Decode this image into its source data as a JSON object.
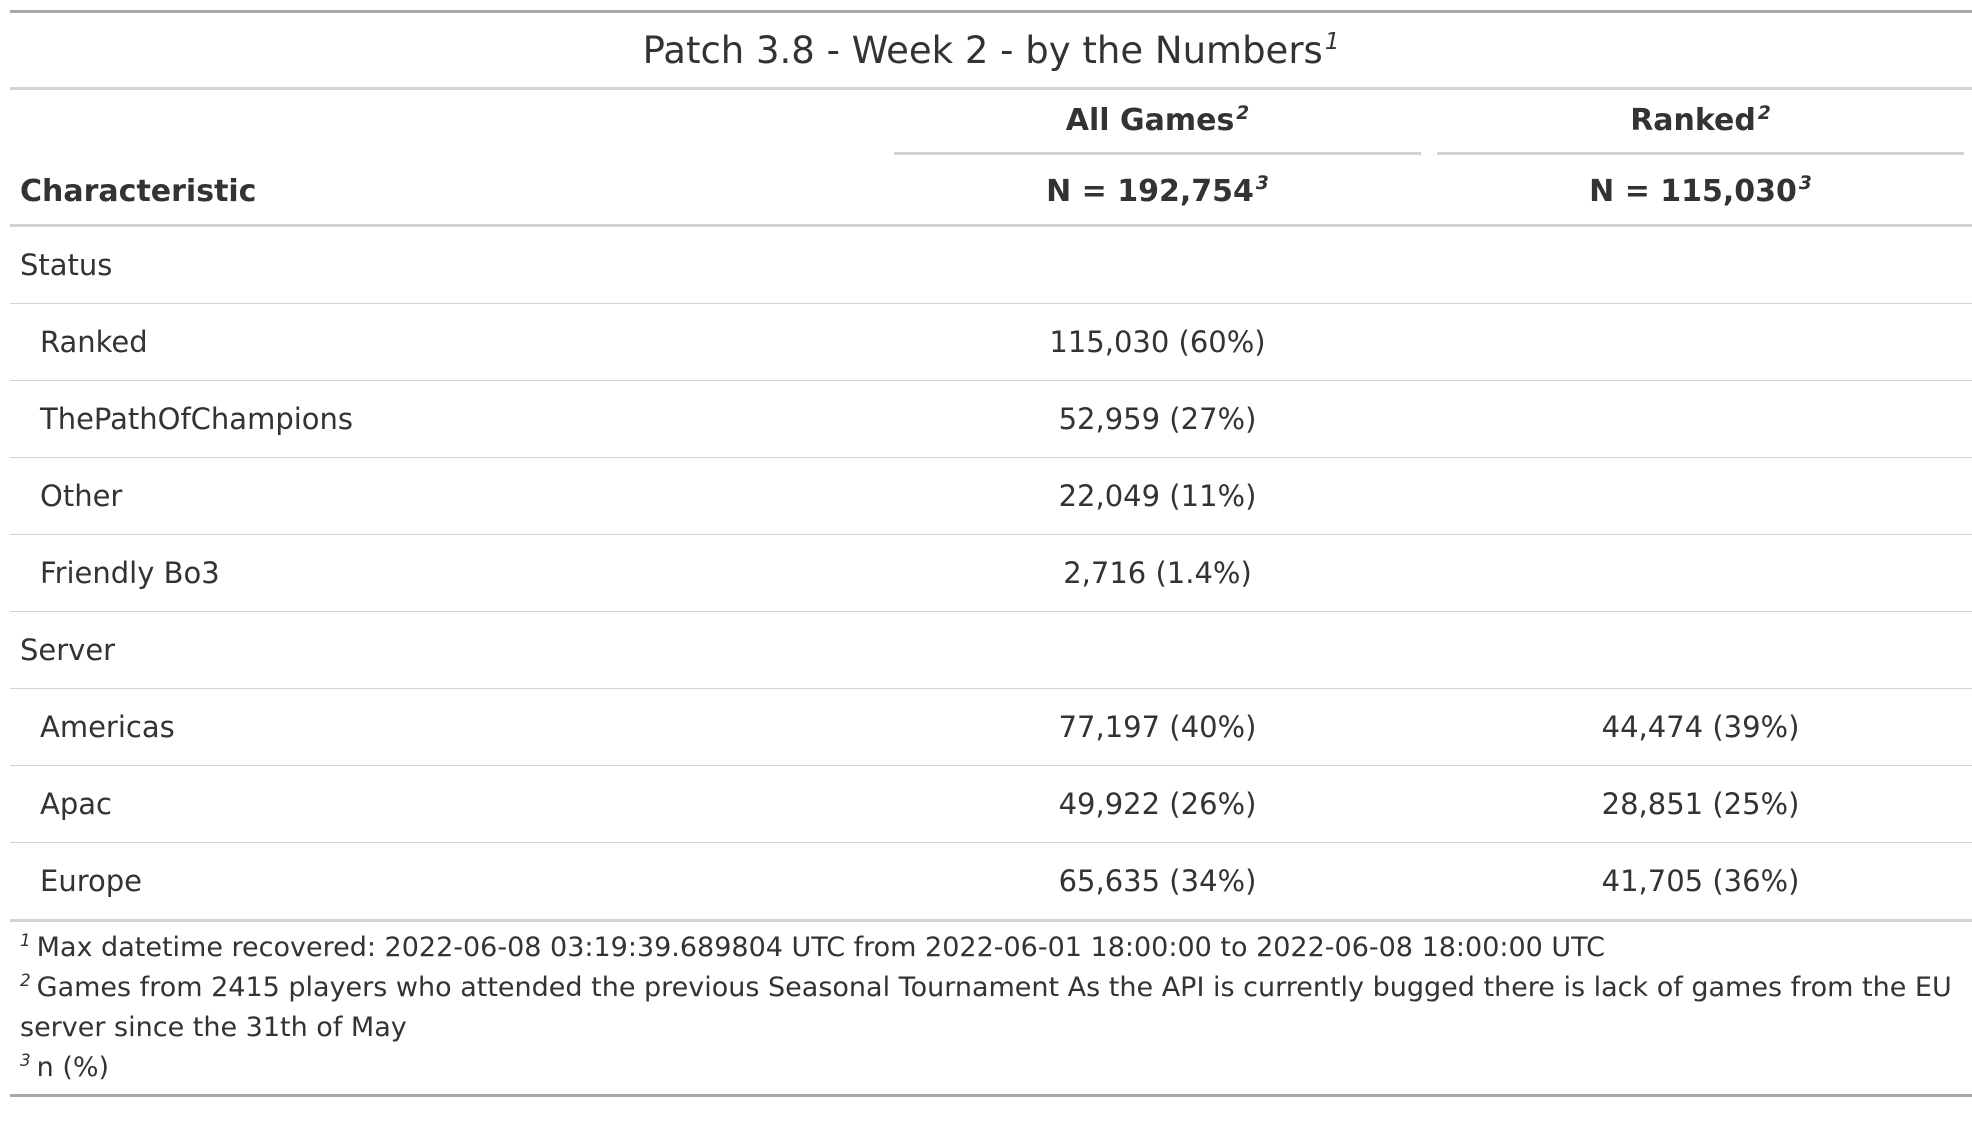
{
  "title": {
    "text": "Patch 3.8 - Week 2 - by the Numbers",
    "footnote_mark": "1"
  },
  "spanners": [
    {
      "label": "All Games",
      "footnote_mark": "2"
    },
    {
      "label": "Ranked",
      "footnote_mark": "2"
    }
  ],
  "column_headers": {
    "characteristic": "Characteristic",
    "all_games_n": "N = 192,754",
    "all_games_mark": "3",
    "ranked_n": "N = 115,030",
    "ranked_mark": "3"
  },
  "groups": {
    "status": {
      "label": "Status",
      "rows": [
        {
          "label": "Ranked",
          "all_games": "115,030 (60%)",
          "ranked": ""
        },
        {
          "label": "ThePathOfChampions",
          "all_games": "52,959 (27%)",
          "ranked": ""
        },
        {
          "label": "Other",
          "all_games": "22,049 (11%)",
          "ranked": ""
        },
        {
          "label": "Friendly Bo3",
          "all_games": "2,716 (1.4%)",
          "ranked": ""
        }
      ]
    },
    "server": {
      "label": "Server",
      "rows": [
        {
          "label": "Americas",
          "all_games": "77,197 (40%)",
          "ranked": "44,474 (39%)"
        },
        {
          "label": "Apac",
          "all_games": "49,922 (26%)",
          "ranked": "28,851 (25%)"
        },
        {
          "label": "Europe",
          "all_games": "65,635 (34%)",
          "ranked": "41,705 (36%)"
        }
      ]
    }
  },
  "footnotes": [
    {
      "mark": "1",
      "text": "Max datetime recovered: 2022-06-08 03:19:39.689804 UTC from 2022-06-01 18:00:00 to 2022-06-08 18:00:00 UTC"
    },
    {
      "mark": "2",
      "text": "Games from 2415 players who attended the previous Seasonal Tournament As the API is currently bugged there is lack of games from the EU server since the 31th of May"
    },
    {
      "mark": "3",
      "text": "n (%)"
    }
  ]
}
